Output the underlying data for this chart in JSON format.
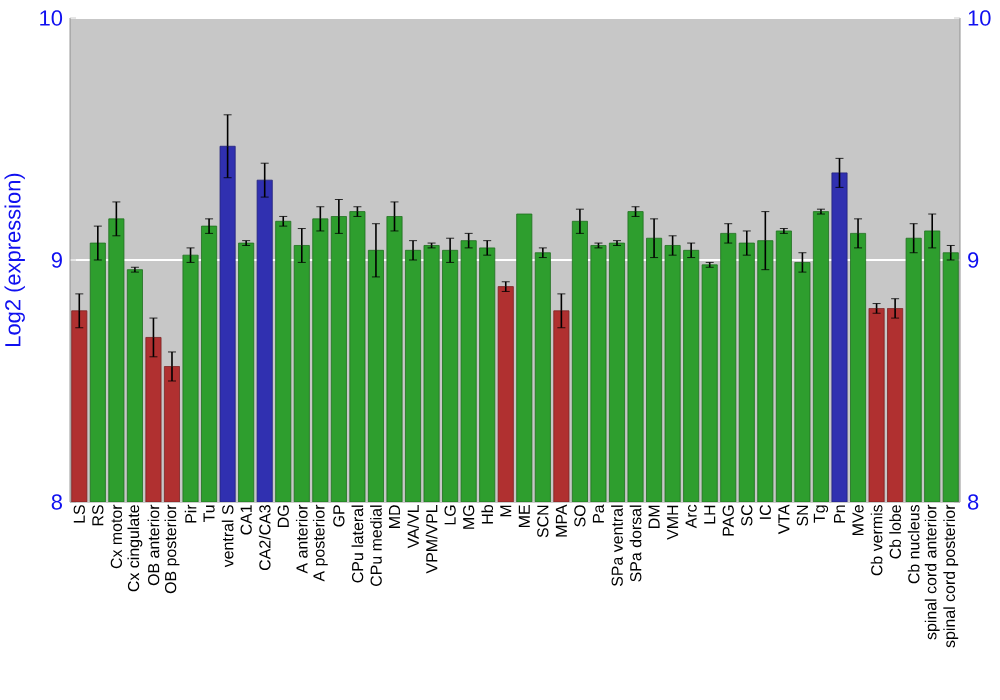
{
  "chart_data": {
    "type": "bar",
    "ylabel": "Log2 (expression)",
    "categories": [
      "LS",
      "RS",
      "Cx motor",
      "Cx cingulate",
      "OB anterior",
      "OB posterior",
      "Pir",
      "Tu",
      "ventral S",
      "CA1",
      "CA2/CA3",
      "DG",
      "A anterior",
      "A posterior",
      "GP",
      "CPu lateral",
      "CPu medial",
      "MD",
      "VA/VL",
      "VPM/VPL",
      "LG",
      "MG",
      "Hb",
      "M",
      "ME",
      "SCN",
      "MPA",
      "SO",
      "Pa",
      "SPa ventral",
      "SPa dorsal",
      "DM",
      "VMH",
      "Arc",
      "LH",
      "PAG",
      "SC",
      "IC",
      "VTA",
      "SN",
      "Tg",
      "Pn",
      "MVe",
      "Cb vermis",
      "Cb lobe",
      "Cb nucleus",
      "spinal cord anterior",
      "spinal cord posterior"
    ],
    "values": [
      8.79,
      9.07,
      9.17,
      8.96,
      8.68,
      8.56,
      9.02,
      9.14,
      9.47,
      9.07,
      9.33,
      9.16,
      9.06,
      9.17,
      9.18,
      9.2,
      9.04,
      9.18,
      9.04,
      9.06,
      9.04,
      9.08,
      9.05,
      8.89,
      9.19,
      9.03,
      8.79,
      9.16,
      9.06,
      9.07,
      9.2,
      9.09,
      9.06,
      9.04,
      8.98,
      9.11,
      9.07,
      9.08,
      9.12,
      8.99,
      9.2,
      9.36,
      9.11,
      8.8,
      8.8,
      9.09,
      9.12,
      9.03
    ],
    "errors": [
      0.07,
      0.07,
      0.07,
      0.01,
      0.08,
      0.06,
      0.03,
      0.03,
      0.13,
      0.01,
      0.07,
      0.02,
      0.07,
      0.05,
      0.07,
      0.02,
      0.11,
      0.06,
      0.04,
      0.01,
      0.05,
      0.03,
      0.03,
      0.02,
      null,
      0.02,
      0.07,
      0.05,
      0.01,
      0.01,
      0.02,
      0.08,
      0.04,
      0.03,
      0.01,
      0.04,
      0.05,
      0.12,
      0.01,
      0.04,
      0.01,
      0.06,
      0.06,
      0.02,
      0.04,
      0.06,
      0.07,
      0.03
    ],
    "colors": [
      "#b03030",
      "#2e9e2e",
      "#2e9e2e",
      "#2e9e2e",
      "#b03030",
      "#b03030",
      "#2e9e2e",
      "#2e9e2e",
      "#3030b0",
      "#2e9e2e",
      "#3030b0",
      "#2e9e2e",
      "#2e9e2e",
      "#2e9e2e",
      "#2e9e2e",
      "#2e9e2e",
      "#2e9e2e",
      "#2e9e2e",
      "#2e9e2e",
      "#2e9e2e",
      "#2e9e2e",
      "#2e9e2e",
      "#2e9e2e",
      "#b03030",
      "#2e9e2e",
      "#2e9e2e",
      "#b03030",
      "#2e9e2e",
      "#2e9e2e",
      "#2e9e2e",
      "#2e9e2e",
      "#2e9e2e",
      "#2e9e2e",
      "#2e9e2e",
      "#2e9e2e",
      "#2e9e2e",
      "#2e9e2e",
      "#2e9e2e",
      "#2e9e2e",
      "#2e9e2e",
      "#2e9e2e",
      "#3030b0",
      "#2e9e2e",
      "#b03030",
      "#b03030",
      "#2e9e2e",
      "#2e9e2e",
      "#2e9e2e"
    ],
    "ylim": [
      8,
      10
    ],
    "yticks": [
      8,
      9,
      10
    ],
    "y2lim": [
      8,
      10
    ],
    "y2ticks": [
      8,
      9,
      10
    ],
    "grid": "y"
  }
}
